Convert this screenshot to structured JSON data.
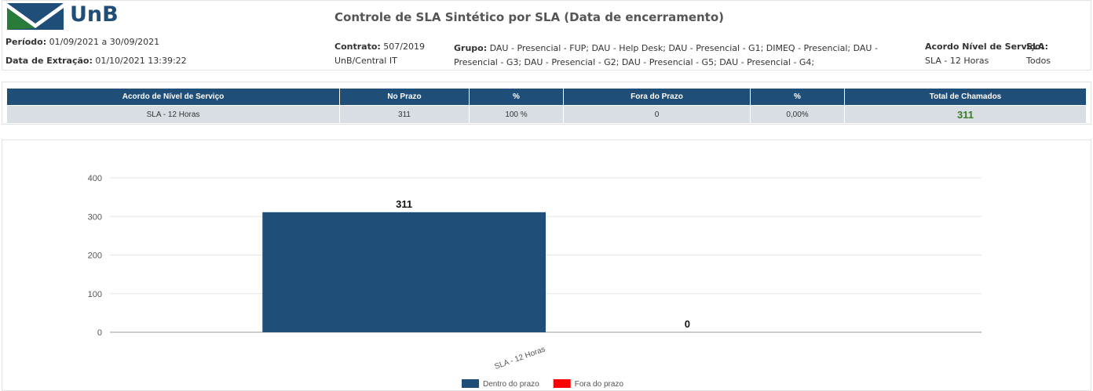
{
  "header": {
    "logo": "UnB",
    "title": "Controle de SLA Sintético por SLA (Data de encerramento)",
    "periodo_label": "Período:",
    "periodo": "01/09/2021 a 30/09/2021",
    "extracao_label": "Data de Extração:",
    "extracao": "01/10/2021 13:39:22",
    "contrato_label": "Contrato:",
    "contrato": "507/2019",
    "contrato_org": "UnB/Central IT",
    "grupo_label": "Grupo:",
    "grupo": "DAU - Presencial - FUP; DAU - Help Desk; DAU - Presencial - G1; DIMEQ - Presencial; DAU - Presencial - G3; DAU - Presencial - G2; DAU - Presencial - G5; DAU - Presencial - G4;",
    "acordo_label": "Acordo Nível de Serviço:",
    "acordo": "SLA - 12 Horas",
    "sla_label": "SLA:",
    "sla": "Todos"
  },
  "table": {
    "header": [
      "Acordo de Nível de Serviço",
      "No Prazo",
      "%",
      "Fora do Prazo",
      "%",
      "Total de Chamados"
    ],
    "rows": [
      [
        "SLA - 12 Horas",
        "311",
        "100 %",
        "0",
        "0,00%",
        "311"
      ]
    ]
  },
  "chart_data": {
    "type": "bar",
    "categories": [
      "SLA - 12 Horas"
    ],
    "series": [
      {
        "name": "Dentro do prazo",
        "color": "#1f4e79",
        "values": [
          311
        ]
      },
      {
        "name": "Fora do prazo",
        "color": "#ff0000",
        "values": [
          0
        ]
      }
    ],
    "ylim": [
      0,
      400
    ],
    "yticks": [
      0,
      100,
      200,
      300,
      400
    ],
    "grid": true,
    "legend": "bottom"
  }
}
